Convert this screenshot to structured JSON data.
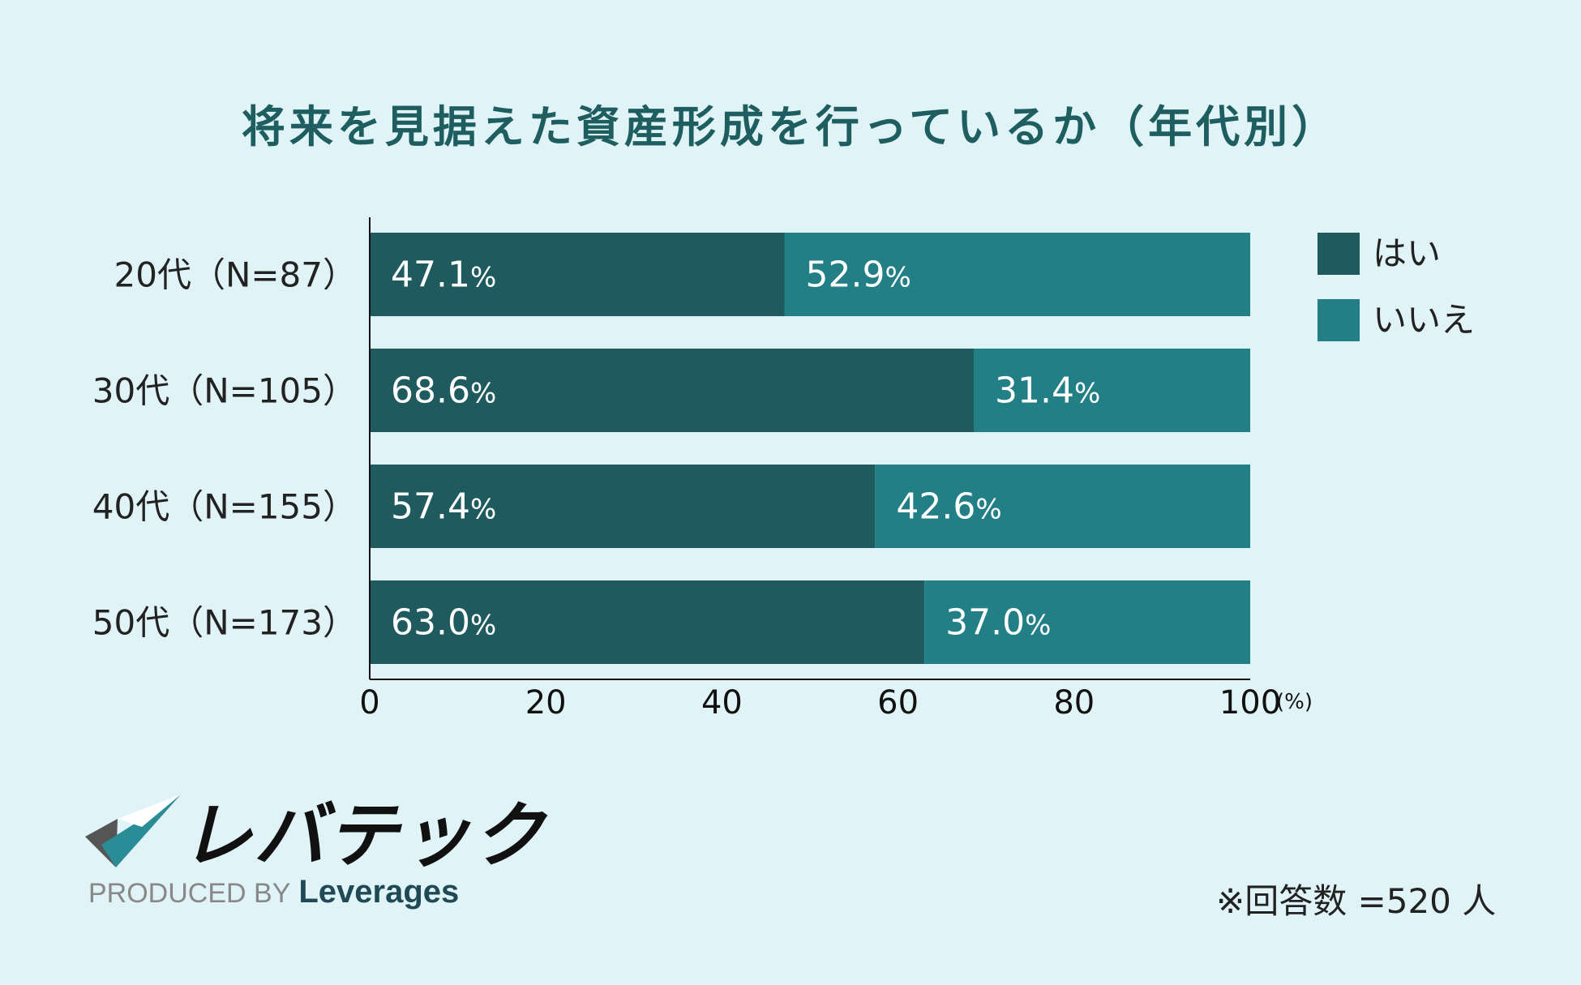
{
  "chart_data": {
    "type": "bar",
    "orientation": "horizontal",
    "stacked": true,
    "title": "将来を見据えた資産形成を行っているか（年代別）",
    "categories": [
      "20代（N=87）",
      "30代（N=105）",
      "40代（N=155）",
      "50代（N=173）"
    ],
    "series": [
      {
        "name": "はい",
        "values": [
          47.1,
          68.6,
          57.4,
          63.0
        ],
        "color": "#1f5b5e"
      },
      {
        "name": "いいえ",
        "values": [
          52.9,
          31.4,
          42.6,
          37.0
        ],
        "color": "#237f86"
      }
    ],
    "xlim": [
      0,
      100
    ],
    "x_ticks": [
      "0",
      "20",
      "40",
      "60",
      "80",
      "100"
    ],
    "x_unit": "(%)",
    "value_suffix": "%",
    "grid": false,
    "legend": "top-right"
  },
  "footnote": "※回答数 =520 人",
  "logo": {
    "wordmark": "レバテック",
    "produced_by": "PRODUCED BY",
    "company": "Leverages"
  }
}
